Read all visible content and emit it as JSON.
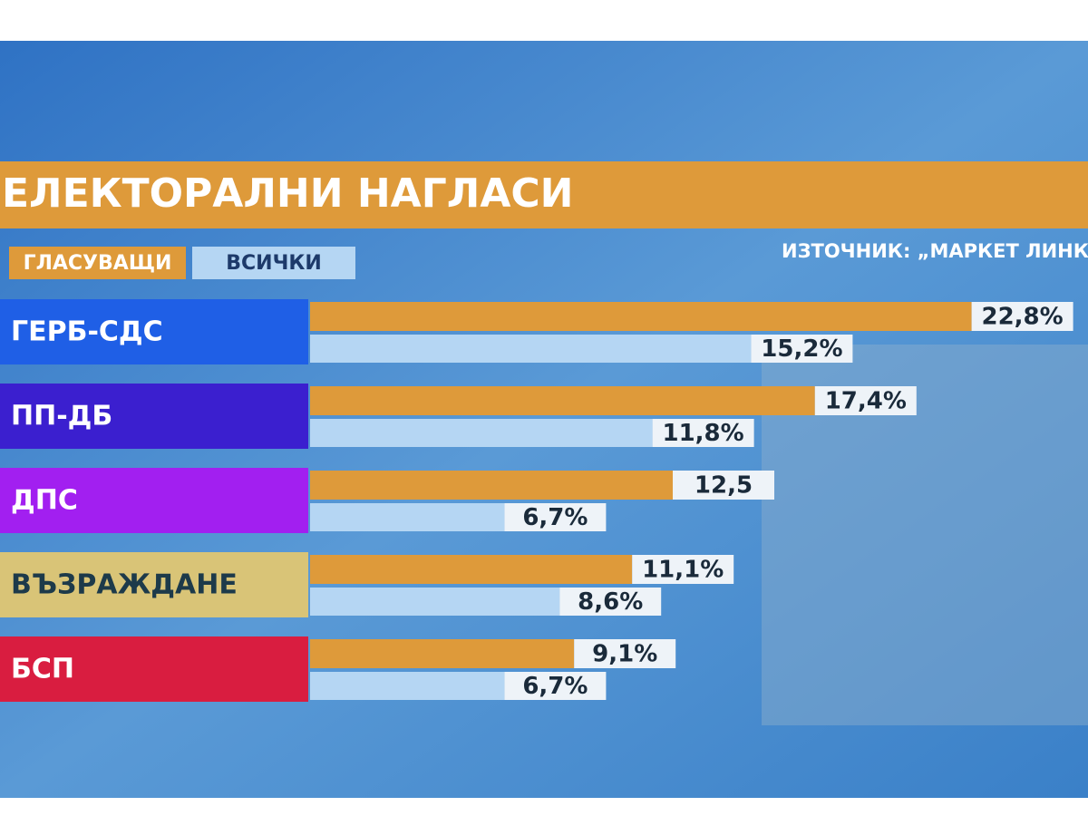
{
  "chart_data": {
    "type": "bar",
    "orientation": "horizontal",
    "title": "ЕЛЕКТОРАЛНИ НАГЛАСИ",
    "source": "ИЗТОЧНИК: „МАРКЕТ ЛИНКС",
    "categories": [
      "ГЕРБ-СДС",
      "ПП-ДБ",
      "ДПС",
      "ВЪЗРАЖДАНЕ",
      "БСП"
    ],
    "category_colors": [
      "#1f5fe6",
      "#3b1fcf",
      "#a21ff0",
      "#d9c477",
      "#d91d40"
    ],
    "series": [
      {
        "name": "ГЛАСУВАЩИ",
        "color": "#de9a3a",
        "values": [
          22.8,
          17.4,
          12.5,
          11.1,
          9.1
        ],
        "value_labels": [
          "22,8%",
          "17,4%",
          "12,5",
          "11,1%",
          "9,1%"
        ]
      },
      {
        "name": "ВСИЧКИ",
        "color": "#b5d6f3",
        "values": [
          15.2,
          11.8,
          6.7,
          8.6,
          6.7
        ],
        "value_labels": [
          "15,2%",
          "11,8%",
          "6,7%",
          "8,6%",
          "6,7%"
        ]
      }
    ]
  }
}
